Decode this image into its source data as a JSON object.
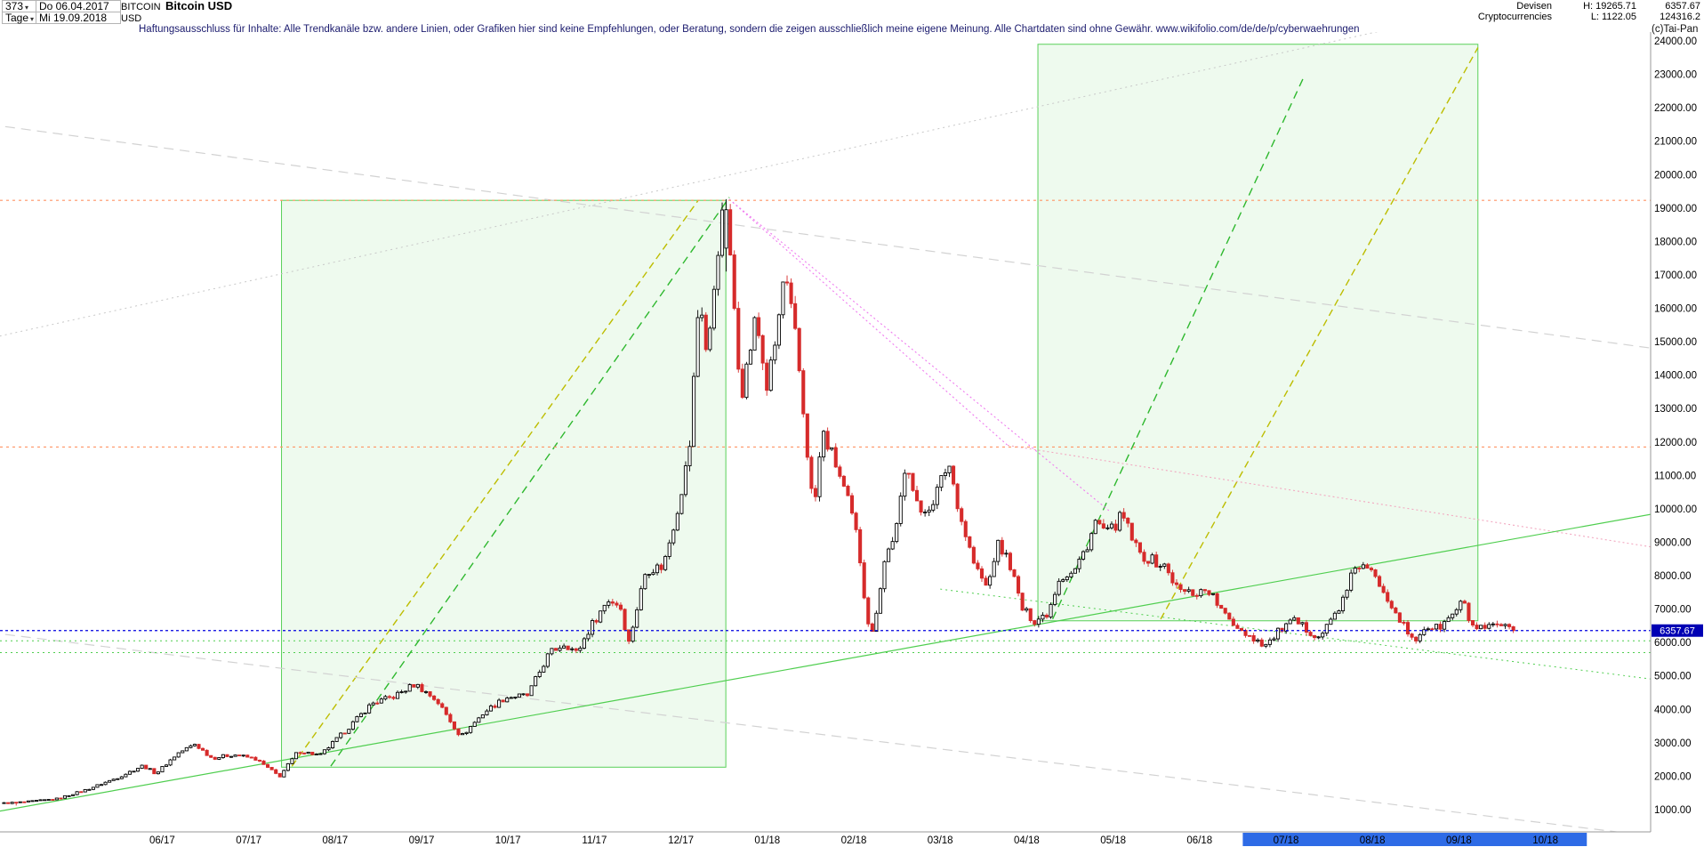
{
  "header": {
    "bars": "373",
    "caret": "▾",
    "date_from": "Do 06.04.2017",
    "symbol": "BITCOIN",
    "title": "Bitcoin USD",
    "period": "Tage",
    "date_to": "Mi 19.09.2018",
    "currency": "USD",
    "category1": "Devisen",
    "category2": "Cryptocurrencies",
    "high_label": "H: 19265.71",
    "low_label": "L: 1122.05",
    "last_price": "6357.67",
    "secondary_value": "124316.2"
  },
  "disclaimer": "Haftungsausschluss für Inhalte: Alle Trendkanäle bzw. andere Linien, oder Grafiken hier sind keine Empfehlungen, oder Beratung, sondern die zeigen ausschließlich meine eigene Meinung. Alle Chartdaten sind ohne Gewähr.   www.wikifolio.com/de/de/p/cyberwaehrungen",
  "copyright": "(c)Tai-Pan",
  "chart_data": {
    "type": "candlestick",
    "title": "Bitcoin USD",
    "instrument": "BITCOIN USD",
    "bars": 373,
    "t_unit": "months since 2017-04-01",
    "t_start": 0.17,
    "t_end": 17.63,
    "last_price": 6357.67,
    "high": 19265.71,
    "low": 1122.05,
    "start_low_t": 0.3,
    "peak": {
      "t": 8.53,
      "open": 17800,
      "close": 18950,
      "high": 19265.71,
      "low": 17100
    },
    "y_axis": {
      "min": 1000,
      "max": 24000,
      "step": 1000
    },
    "x_axis": {
      "months": [
        {
          "label": "06/17",
          "t": 2
        },
        {
          "label": "07/17",
          "t": 3
        },
        {
          "label": "08/17",
          "t": 4
        },
        {
          "label": "09/17",
          "t": 5
        },
        {
          "label": "10/17",
          "t": 6
        },
        {
          "label": "11/17",
          "t": 7
        },
        {
          "label": "12/17",
          "t": 8
        },
        {
          "label": "01/18",
          "t": 9
        },
        {
          "label": "02/18",
          "t": 10
        },
        {
          "label": "03/18",
          "t": 11
        },
        {
          "label": "04/18",
          "t": 12
        },
        {
          "label": "05/18",
          "t": 13
        },
        {
          "label": "06/18",
          "t": 14
        },
        {
          "label": "07/18",
          "t": 15
        },
        {
          "label": "08/18",
          "t": 16
        },
        {
          "label": "09/18",
          "t": 17
        },
        {
          "label": "10/18",
          "t": 18
        }
      ],
      "hl_t1": 14.5,
      "hl_t2": 18.48,
      "highlighted_labels": [
        "07/18",
        "08/18",
        "09/18",
        "10/18"
      ]
    },
    "keypoints": [
      [
        0.17,
        1190
      ],
      [
        0.45,
        1230
      ],
      [
        0.8,
        1320
      ],
      [
        1.15,
        1600
      ],
      [
        1.5,
        1950
      ],
      [
        1.8,
        2320
      ],
      [
        1.95,
        2080
      ],
      [
        2.2,
        2680
      ],
      [
        2.4,
        2960
      ],
      [
        2.6,
        2540
      ],
      [
        2.85,
        2650
      ],
      [
        3.1,
        2520
      ],
      [
        3.38,
        1990
      ],
      [
        3.6,
        2760
      ],
      [
        3.85,
        2620
      ],
      [
        4.15,
        3380
      ],
      [
        4.45,
        4180
      ],
      [
        4.7,
        4380
      ],
      [
        4.95,
        4760
      ],
      [
        5.2,
        4260
      ],
      [
        5.48,
        3180
      ],
      [
        5.75,
        3920
      ],
      [
        6.0,
        4360
      ],
      [
        6.25,
        4420
      ],
      [
        6.5,
        5680
      ],
      [
        6.68,
        5980
      ],
      [
        6.82,
        5680
      ],
      [
        6.98,
        6480
      ],
      [
        7.18,
        7280
      ],
      [
        7.32,
        7120
      ],
      [
        7.42,
        5980
      ],
      [
        7.62,
        8180
      ],
      [
        7.82,
        8280
      ],
      [
        7.98,
        9950
      ],
      [
        8.12,
        11700
      ],
      [
        8.24,
        16600
      ],
      [
        8.33,
        14350
      ],
      [
        8.44,
        17650
      ],
      [
        8.53,
        19100
      ],
      [
        8.63,
        16400
      ],
      [
        8.72,
        13400
      ],
      [
        8.82,
        14700
      ],
      [
        8.89,
        15750
      ],
      [
        9.02,
        13600
      ],
      [
        9.13,
        15150
      ],
      [
        9.22,
        17050
      ],
      [
        9.36,
        14950
      ],
      [
        9.5,
        11350
      ],
      [
        9.56,
        9850
      ],
      [
        9.66,
        12300
      ],
      [
        9.82,
        11300
      ],
      [
        9.97,
        10100
      ],
      [
        10.07,
        9050
      ],
      [
        10.17,
        6900
      ],
      [
        10.23,
        6150
      ],
      [
        10.38,
        8450
      ],
      [
        10.52,
        9450
      ],
      [
        10.64,
        11450
      ],
      [
        10.8,
        9750
      ],
      [
        10.96,
        10350
      ],
      [
        11.12,
        11400
      ],
      [
        11.27,
        9650
      ],
      [
        11.42,
        8300
      ],
      [
        11.57,
        7600
      ],
      [
        11.68,
        8950
      ],
      [
        11.82,
        8450
      ],
      [
        11.97,
        7000
      ],
      [
        12.12,
        6650
      ],
      [
        12.27,
        6900
      ],
      [
        12.4,
        7950
      ],
      [
        12.57,
        8100
      ],
      [
        12.72,
        8900
      ],
      [
        12.82,
        9600
      ],
      [
        12.97,
        9250
      ],
      [
        13.13,
        9800
      ],
      [
        13.32,
        8650
      ],
      [
        13.48,
        8450
      ],
      [
        13.63,
        8250
      ],
      [
        13.78,
        7550
      ],
      [
        13.97,
        7480
      ],
      [
        14.12,
        7600
      ],
      [
        14.32,
        6780
      ],
      [
        14.48,
        6450
      ],
      [
        14.63,
        6150
      ],
      [
        14.8,
        5920
      ],
      [
        14.97,
        6420
      ],
      [
        15.12,
        6620
      ],
      [
        15.27,
        6380
      ],
      [
        15.42,
        6180
      ],
      [
        15.57,
        6780
      ],
      [
        15.72,
        7420
      ],
      [
        15.82,
        8320
      ],
      [
        15.97,
        8180
      ],
      [
        16.12,
        7720
      ],
      [
        16.27,
        7050
      ],
      [
        16.42,
        6320
      ],
      [
        16.5,
        5980
      ],
      [
        16.63,
        6480
      ],
      [
        16.78,
        6420
      ],
      [
        16.92,
        6740
      ],
      [
        17.07,
        7230
      ],
      [
        17.17,
        6480
      ],
      [
        17.32,
        6360
      ],
      [
        17.47,
        6520
      ],
      [
        17.63,
        6357.67
      ]
    ],
    "overlays": {
      "boxes": [
        {
          "name": "trend-box-2017",
          "t1": 3.38,
          "p1": 2270,
          "t2": 8.52,
          "p2": 19230
        },
        {
          "name": "trend-box-2018",
          "t1": 12.13,
          "p1": 6650,
          "t2": 17.22,
          "p2": 23900
        }
      ],
      "trendlines": [
        {
          "name": "olive-up-2017",
          "t1": 3.5,
          "p1": 2300,
          "t2": 8.2,
          "p2": 19230,
          "color": "olive",
          "dash": "8,5",
          "w": 1.4
        },
        {
          "name": "green-up-2017",
          "t1": 3.95,
          "p1": 2300,
          "t2": 8.56,
          "p2": 19320,
          "color": "green",
          "dash": "9,6",
          "w": 1.4
        },
        {
          "name": "green-up-2018",
          "t1": 12.3,
          "p1": 6700,
          "t2": 15.22,
          "p2": 23000,
          "color": "green",
          "dash": "9,6",
          "w": 1.4
        },
        {
          "name": "olive-up-2018",
          "t1": 13.55,
          "p1": 6700,
          "t2": 17.22,
          "p2": 23800,
          "color": "olive",
          "dash": "8,5",
          "w": 1.4
        },
        {
          "name": "pink-down-1",
          "t1": 8.56,
          "p1": 19260,
          "t2": 11.78,
          "p2": 11900,
          "color": "pink",
          "dash": "2,3",
          "w": 1.1
        },
        {
          "name": "pink-down-2",
          "t1": 8.56,
          "p1": 19260,
          "t2": 12.95,
          "p2": 9950,
          "color": "pink",
          "dash": "2,3",
          "w": 1.1
        },
        {
          "name": "pink-down-3",
          "t1": 11.78,
          "p1": 11900,
          "t2": 19.25,
          "p2": 8850,
          "color": "pink2",
          "dash": "2,3",
          "w": 1.1
        },
        {
          "name": "gray-down-upper",
          "t1": 0,
          "p1": 21500,
          "t2": 19.25,
          "p2": 14800,
          "color": "gray",
          "dash": "11,7",
          "w": 1.2
        },
        {
          "name": "gray-down-lower",
          "t1": 0,
          "p1": 6300,
          "t2": 19.25,
          "p2": 200,
          "color": "gray",
          "dash": "11,7",
          "w": 1.2
        },
        {
          "name": "gray-up-dotted",
          "t1": 0,
          "p1": 15100,
          "t2": 16.1,
          "p2": 24300,
          "color": "gray2",
          "dash": "2,4",
          "w": 1
        },
        {
          "name": "green-up-long",
          "t1": 0,
          "p1": 900,
          "t2": 19.25,
          "p2": 9850,
          "color": "green2",
          "dash": "",
          "w": 1.2
        },
        {
          "name": "green-down-dotted",
          "t1": 11,
          "p1": 7600,
          "t2": 19.25,
          "p2": 4900,
          "color": "green2",
          "dash": "2,4",
          "w": 1
        }
      ],
      "hlines": [
        {
          "name": "resistance-19230",
          "p": 19230,
          "color": "orange",
          "dash": "3,4",
          "w": 1.1
        },
        {
          "name": "resistance-11850",
          "p": 11850,
          "color": "orange",
          "dash": "3,4",
          "w": 1.1
        },
        {
          "name": "support-6050",
          "p": 6050,
          "color": "green2",
          "dash": "2,4",
          "w": 1
        },
        {
          "name": "support-5700",
          "p": 5700,
          "color": "green2",
          "dash": "2,4",
          "w": 1
        },
        {
          "name": "last-price-line",
          "p": 6357.67,
          "color": "blue",
          "dash": "3,3",
          "w": 1.2
        }
      ]
    },
    "colors": {
      "up": "#000000",
      "down": "#d62b2b",
      "box_fill": "rgba(120,215,120,0.13)",
      "box_stroke": "#58d058",
      "olive": "#bdbd00",
      "green": "#2eb82e",
      "green2": "#4fce4f",
      "pink": "#ef7bef",
      "pink2": "#f2a8c0",
      "gray": "#d2d2d2",
      "gray2": "#c8c8c8",
      "orange": "#ff9465",
      "blue": "#0000e0",
      "x_highlight": "#2e6be6",
      "price_tag_bg": "#0000b4",
      "price_tag_fg": "#ffffff",
      "axis": "#999999",
      "label": "#000000"
    }
  }
}
